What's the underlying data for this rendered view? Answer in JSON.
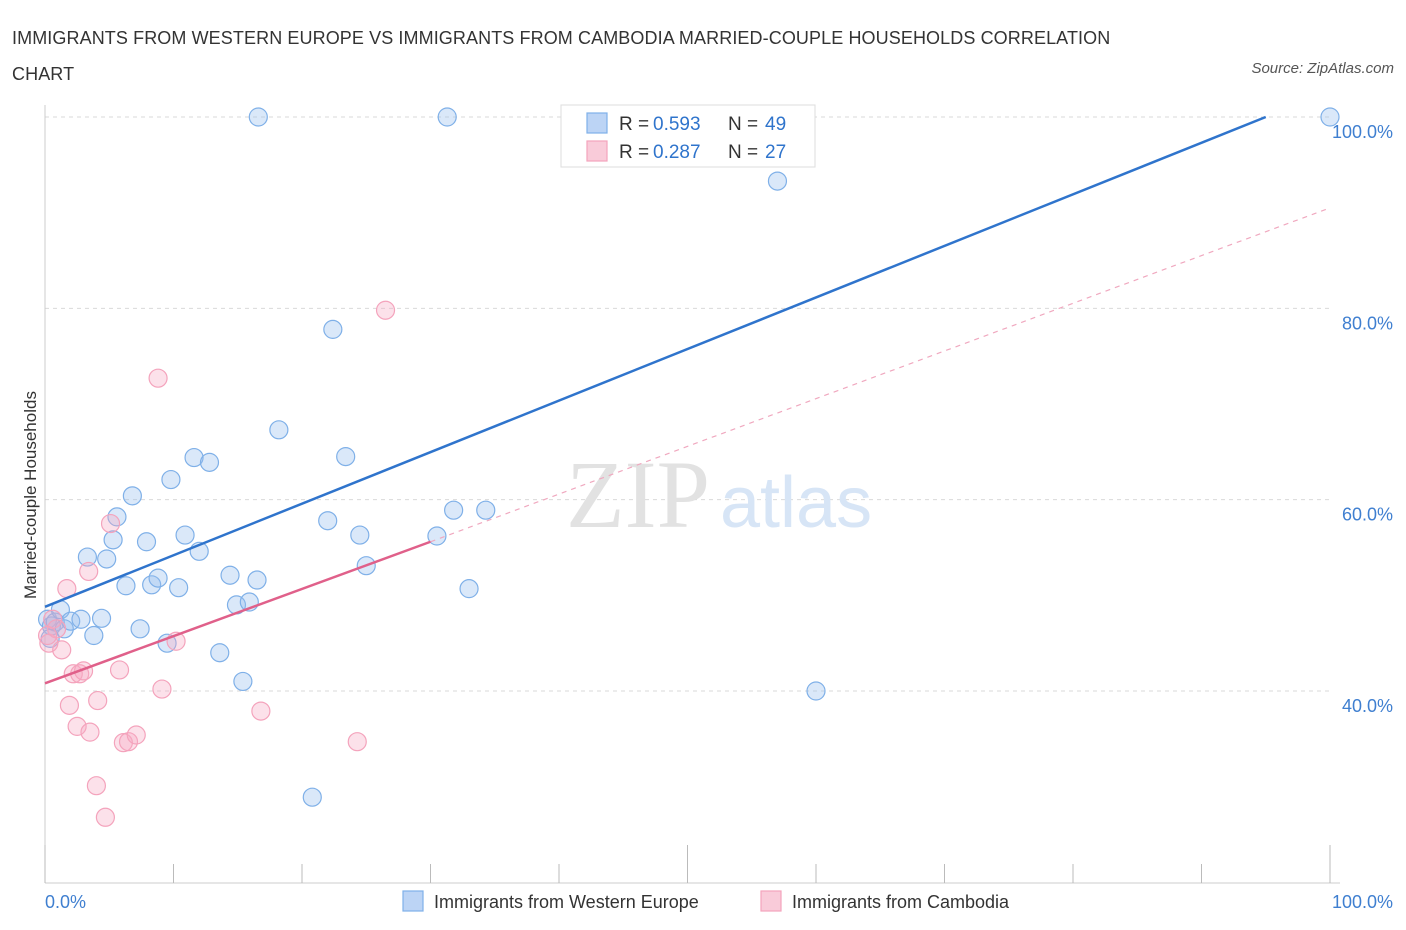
{
  "title": "IMMIGRANTS FROM WESTERN EUROPE VS IMMIGRANTS FROM CAMBODIA MARRIED-COUPLE HOUSEHOLDS CORRELATION CHART",
  "source": "Source: ZipAtlas.com",
  "chart_data": {
    "type": "scatter",
    "title": "IMMIGRANTS FROM WESTERN EUROPE VS IMMIGRANTS FROM CAMBODIA MARRIED-COUPLE HOUSEHOLDS CORRELATION CHART",
    "xlabel": "",
    "ylabel": "Married-couple Households",
    "xlim": [
      0,
      100
    ],
    "ylim": [
      20,
      102
    ],
    "x_tick_labels": [
      {
        "value": 0,
        "label": "0.0%"
      },
      {
        "value": 100,
        "label": "100.0%"
      }
    ],
    "y_tick_labels": [
      {
        "value": 40,
        "label": "40.0%"
      },
      {
        "value": 60,
        "label": "60.0%"
      },
      {
        "value": 80,
        "label": "80.0%"
      },
      {
        "value": 100,
        "label": "100.0%"
      }
    ],
    "watermark": {
      "zip": "ZIP",
      "atlas": "atlas"
    },
    "legend_stats": [
      {
        "r_label": "R =",
        "r_value": "0.593",
        "n_label": "N =",
        "n_value": "49"
      },
      {
        "r_label": "R =",
        "r_value": "0.287",
        "n_label": "N =",
        "n_value": "27"
      }
    ],
    "series": [
      {
        "name": "Immigrants from Western Europe",
        "color": "#7fb0e8",
        "line_color": "#2f74cc",
        "trend": {
          "x0": 0,
          "y0": 48.8,
          "x1": 95,
          "y1": 100
        },
        "points": [
          [
            0.2,
            47.5
          ],
          [
            0.5,
            46.8
          ],
          [
            0.8,
            47.2
          ],
          [
            1.2,
            48.5
          ],
          [
            1.5,
            46.5
          ],
          [
            2.0,
            47.3
          ],
          [
            2.8,
            47.5
          ],
          [
            3.3,
            54.0
          ],
          [
            3.8,
            45.8
          ],
          [
            4.4,
            47.6
          ],
          [
            4.8,
            53.8
          ],
          [
            5.3,
            55.8
          ],
          [
            5.6,
            58.2
          ],
          [
            6.3,
            51.0
          ],
          [
            6.8,
            60.4
          ],
          [
            7.4,
            46.5
          ],
          [
            7.9,
            55.6
          ],
          [
            8.3,
            51.1
          ],
          [
            8.8,
            51.8
          ],
          [
            9.5,
            45.0
          ],
          [
            9.8,
            62.1
          ],
          [
            10.4,
            50.8
          ],
          [
            10.9,
            56.3
          ],
          [
            11.6,
            64.4
          ],
          [
            12.0,
            54.6
          ],
          [
            12.8,
            63.9
          ],
          [
            13.6,
            44.0
          ],
          [
            14.4,
            52.1
          ],
          [
            14.9,
            49.0
          ],
          [
            15.4,
            41.0
          ],
          [
            15.9,
            49.3
          ],
          [
            16.5,
            51.6
          ],
          [
            16.6,
            100
          ],
          [
            18.2,
            67.3
          ],
          [
            20.8,
            28.9
          ],
          [
            22.0,
            57.8
          ],
          [
            22.4,
            77.8
          ],
          [
            23.4,
            64.5
          ],
          [
            24.5,
            56.3
          ],
          [
            25.0,
            53.1
          ],
          [
            30.5,
            56.2
          ],
          [
            31.3,
            100
          ],
          [
            31.8,
            58.9
          ],
          [
            33.0,
            50.7
          ],
          [
            34.3,
            58.9
          ],
          [
            57.0,
            93.3
          ],
          [
            60.0,
            40.0
          ],
          [
            100,
            100
          ],
          [
            0.4,
            45.5
          ]
        ]
      },
      {
        "name": "Immigrants from Cambodia",
        "color": "#f4a3bc",
        "line_color": "#e0608a",
        "trend": {
          "x0": 0,
          "y0": 40.8,
          "x1": 30,
          "y1": 55.6
        },
        "dashed_trend": {
          "x0": 30,
          "y0": 55.6,
          "x1": 100,
          "y1": 90.5
        },
        "points": [
          [
            0.3,
            45.0
          ],
          [
            0.6,
            47.5
          ],
          [
            0.9,
            46.5
          ],
          [
            1.3,
            44.3
          ],
          [
            1.7,
            50.7
          ],
          [
            1.9,
            38.5
          ],
          [
            2.2,
            41.8
          ],
          [
            2.5,
            36.3
          ],
          [
            2.7,
            41.8
          ],
          [
            3.0,
            42.1
          ],
          [
            3.4,
            52.5
          ],
          [
            3.5,
            35.7
          ],
          [
            4.0,
            30.1
          ],
          [
            4.1,
            39.0
          ],
          [
            4.7,
            26.8
          ],
          [
            5.1,
            57.5
          ],
          [
            5.8,
            42.2
          ],
          [
            6.1,
            34.6
          ],
          [
            6.5,
            34.7
          ],
          [
            7.1,
            35.4
          ],
          [
            8.8,
            72.7
          ],
          [
            9.1,
            40.2
          ],
          [
            10.2,
            45.2
          ],
          [
            16.8,
            37.9
          ],
          [
            24.3,
            34.7
          ],
          [
            26.5,
            79.8
          ],
          [
            0.2,
            45.8
          ]
        ]
      }
    ]
  }
}
